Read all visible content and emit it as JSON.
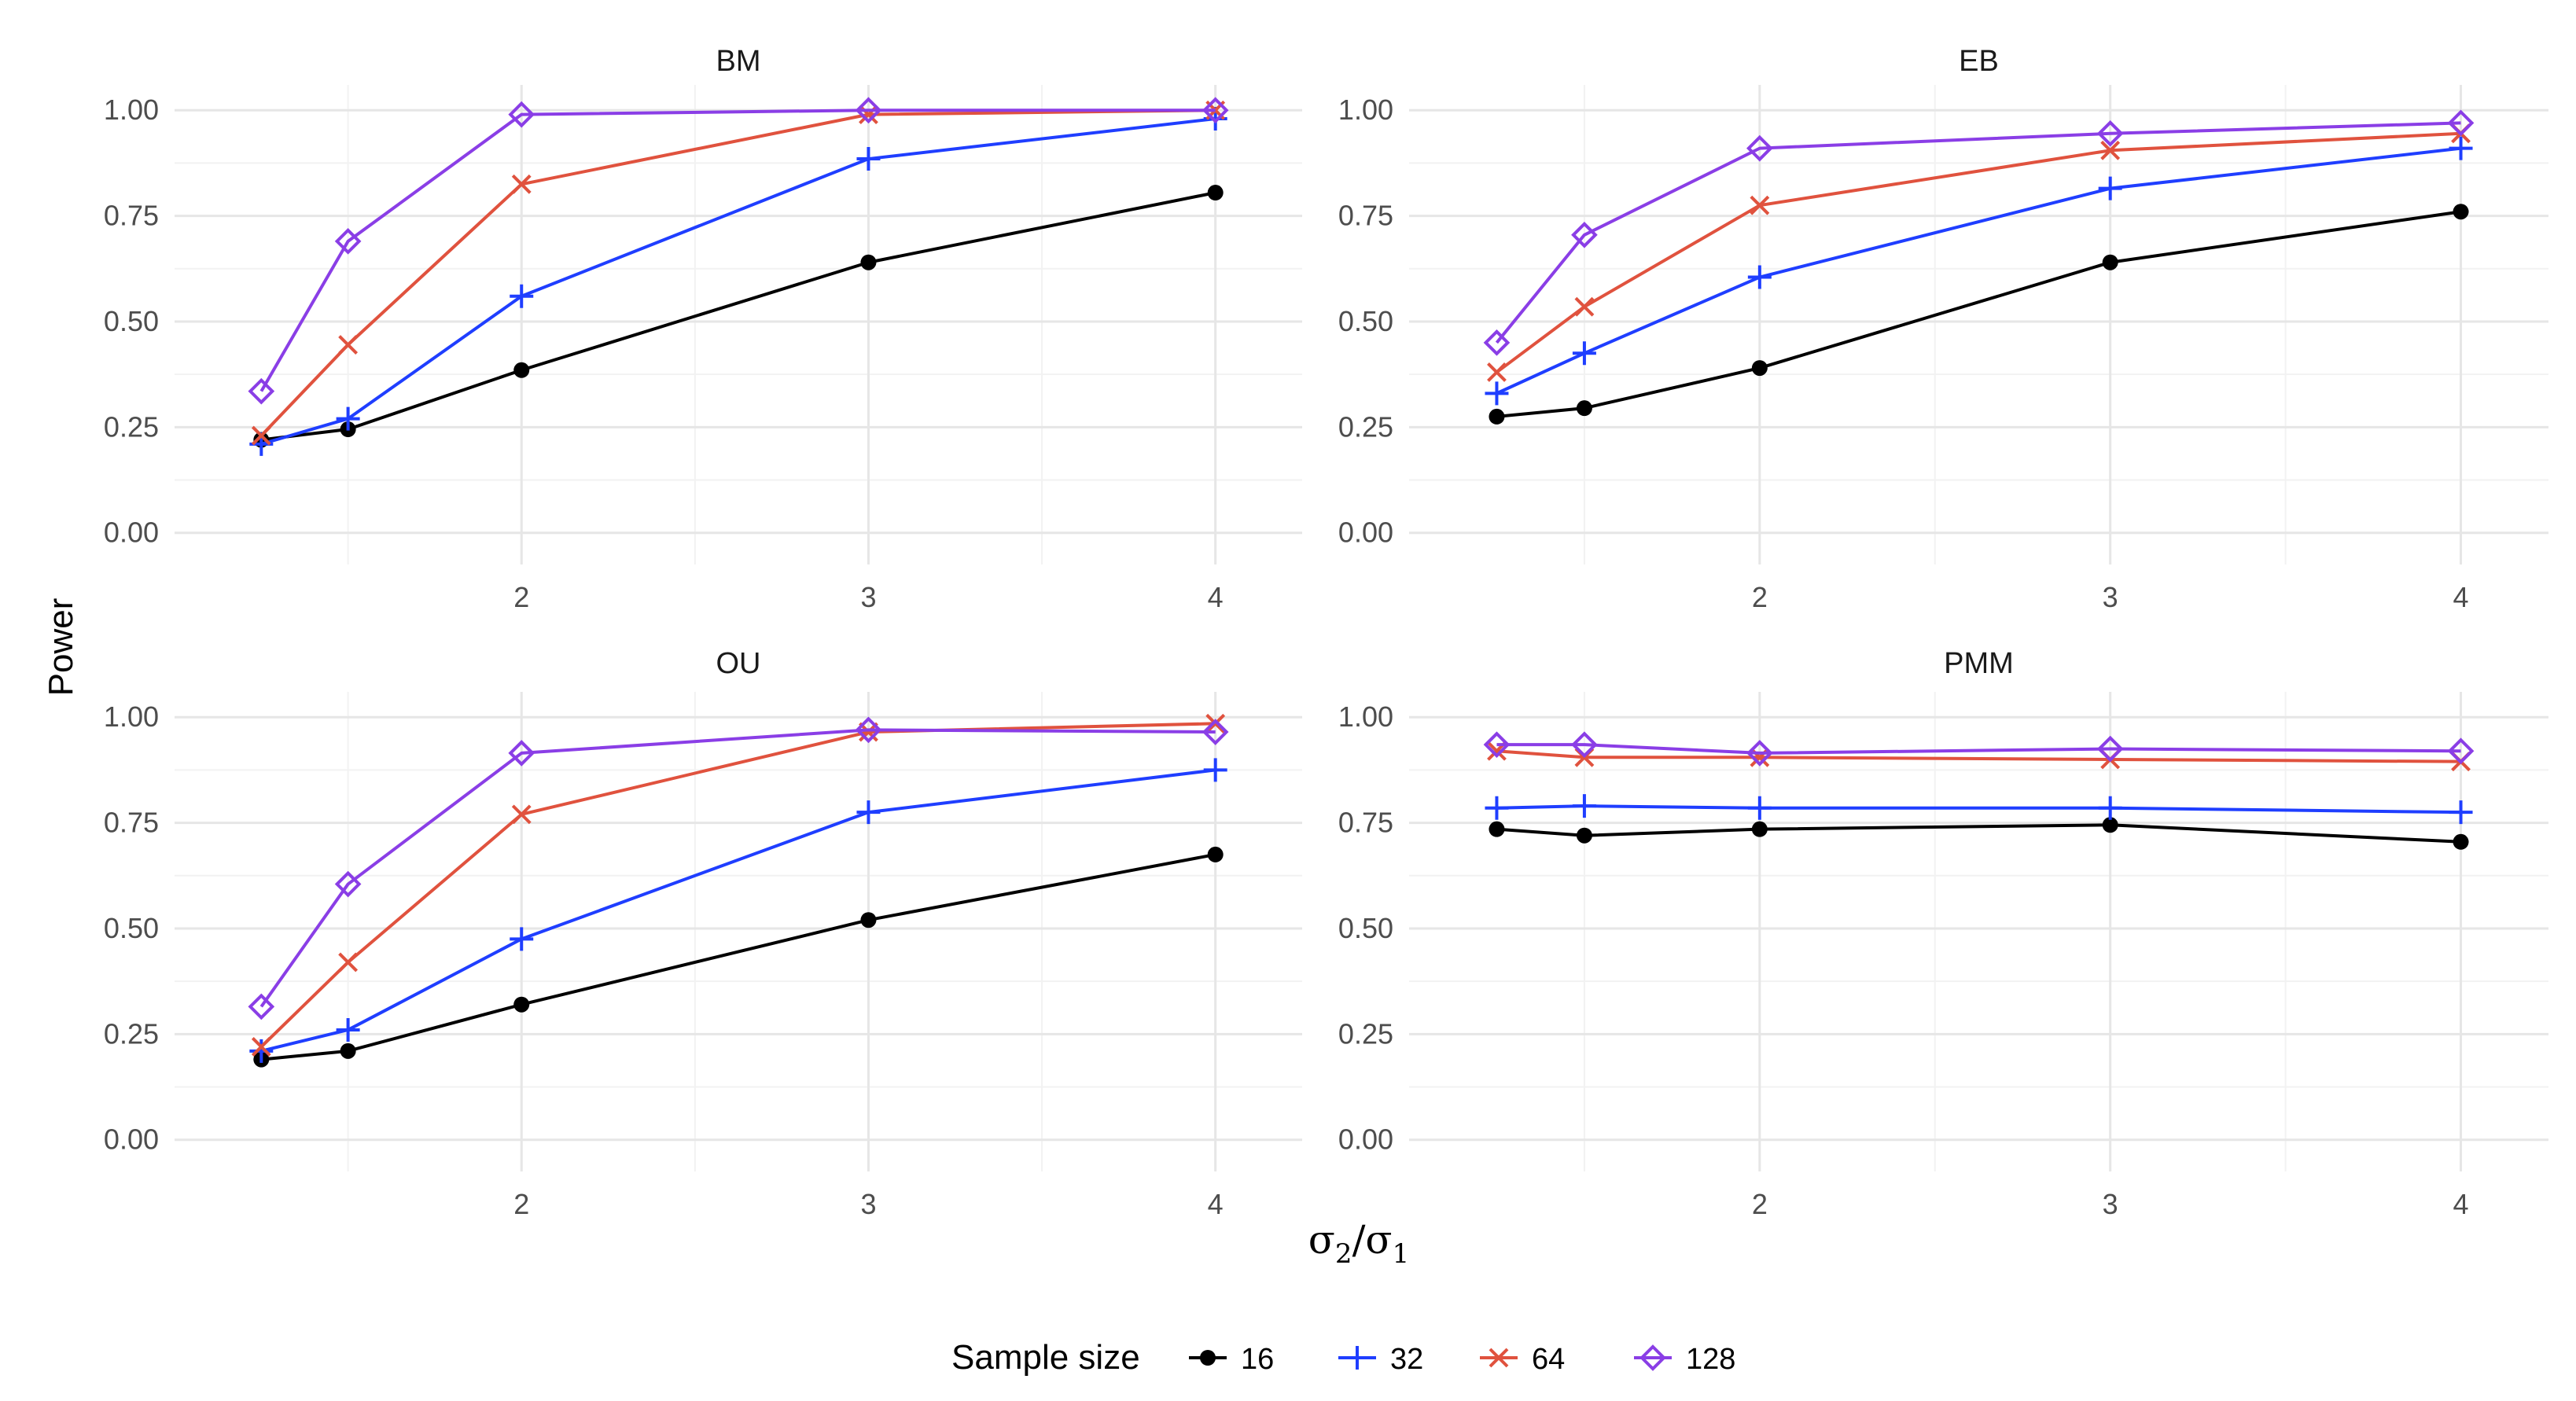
{
  "chart_data": {
    "type": "line",
    "ylabel": "Power",
    "xlabel": {
      "base": "σ",
      "sub1": "2",
      "sep": "/",
      "base2": "σ",
      "sub2": "1"
    },
    "legend_title": "Sample size",
    "x": [
      1.25,
      1.5,
      2,
      3,
      4
    ],
    "xlim": [
      1.0,
      4.25
    ],
    "ylim": [
      -0.075,
      1.06
    ],
    "x_ticks": [
      2,
      3,
      4
    ],
    "x_tick_labels": [
      "2",
      "3",
      "4"
    ],
    "y_ticks": [
      0,
      0.25,
      0.5,
      0.75,
      1.0
    ],
    "y_tick_labels": [
      "0.00",
      "0.25",
      "0.50",
      "0.75",
      "1.00"
    ],
    "series_styles": [
      {
        "name": "16",
        "color": "#000000",
        "marker": "circle"
      },
      {
        "name": "32",
        "color": "#1f3eff",
        "marker": "plus"
      },
      {
        "name": "64",
        "color": "#e0523e",
        "marker": "cross"
      },
      {
        "name": "128",
        "color": "#8a3ee6",
        "marker": "diamond"
      }
    ],
    "panels": [
      {
        "title": "BM",
        "series": [
          {
            "name": "16",
            "values": [
              0.22,
              0.245,
              0.385,
              0.64,
              0.805
            ]
          },
          {
            "name": "32",
            "values": [
              0.21,
              0.27,
              0.56,
              0.885,
              0.98
            ]
          },
          {
            "name": "64",
            "values": [
              0.23,
              0.445,
              0.825,
              0.99,
              1.0
            ]
          },
          {
            "name": "128",
            "values": [
              0.335,
              0.69,
              0.99,
              1.0,
              1.0
            ]
          }
        ]
      },
      {
        "title": "EB",
        "series": [
          {
            "name": "16",
            "values": [
              0.275,
              0.295,
              0.39,
              0.64,
              0.76
            ]
          },
          {
            "name": "32",
            "values": [
              0.33,
              0.425,
              0.605,
              0.815,
              0.91
            ]
          },
          {
            "name": "64",
            "values": [
              0.38,
              0.535,
              0.775,
              0.905,
              0.945
            ]
          },
          {
            "name": "128",
            "values": [
              0.45,
              0.705,
              0.91,
              0.945,
              0.97
            ]
          }
        ]
      },
      {
        "title": "OU",
        "series": [
          {
            "name": "16",
            "values": [
              0.19,
              0.21,
              0.32,
              0.52,
              0.675
            ]
          },
          {
            "name": "32",
            "values": [
              0.21,
              0.26,
              0.475,
              0.775,
              0.875
            ]
          },
          {
            "name": "64",
            "values": [
              0.22,
              0.42,
              0.77,
              0.965,
              0.985
            ]
          },
          {
            "name": "128",
            "values": [
              0.315,
              0.605,
              0.915,
              0.97,
              0.965
            ]
          }
        ]
      },
      {
        "title": "PMM",
        "series": [
          {
            "name": "16",
            "values": [
              0.735,
              0.72,
              0.735,
              0.745,
              0.705
            ]
          },
          {
            "name": "32",
            "values": [
              0.785,
              0.79,
              0.785,
              0.785,
              0.775
            ]
          },
          {
            "name": "64",
            "values": [
              0.92,
              0.905,
              0.905,
              0.9,
              0.895
            ]
          },
          {
            "name": "128",
            "values": [
              0.935,
              0.935,
              0.915,
              0.925,
              0.92
            ]
          }
        ]
      }
    ]
  }
}
